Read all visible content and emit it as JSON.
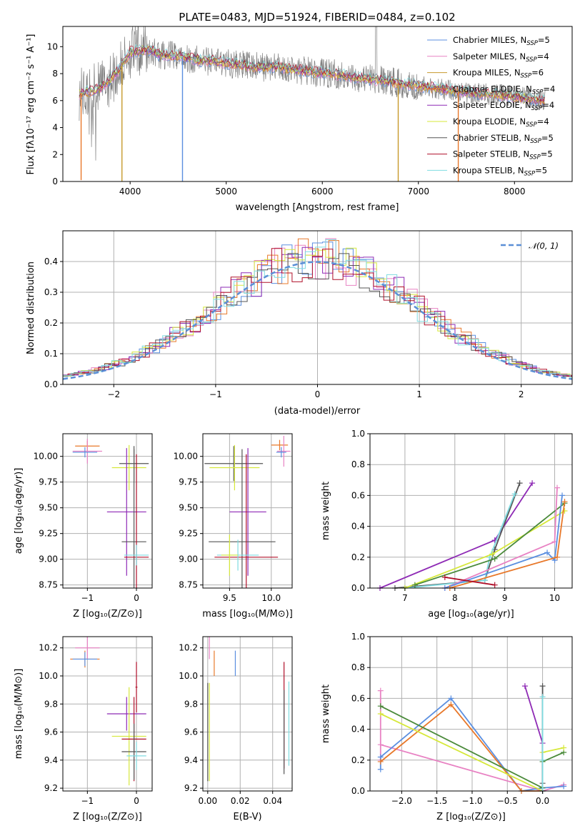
{
  "colors": {
    "Chabrier MILES": "#5b8fe0",
    "Salpeter MILES": "#e882c3",
    "Kroupa MILES": "#c79a2c",
    "Chabrier ELODIE": "#e8782a",
    "Salpeter ELODIE": "#8e2ab5",
    "Kroupa ELODIE": "#d6e83a",
    "Chabrier STELIB": "#555555",
    "Salpeter STELIB": "#b0102a",
    "Kroupa STELIB": "#7fdbe0",
    "data": "#808080",
    "normal": "#5b8fd6",
    "green": "#4a8a3a"
  },
  "chart_data": [
    {
      "type": "line",
      "title": "PLATE=0483, MJD=51924, FIBERID=0484, z=0.102",
      "xlabel": "wavelength [Angstrom, rest frame]",
      "ylabel": "Flux [fλ10⁻¹⁷ erg cm⁻² s⁻¹ A⁻¹]",
      "xlim": [
        3300,
        8600
      ],
      "ylim": [
        0,
        11.5
      ],
      "xticks": [
        "4000",
        "5000",
        "6000",
        "7000",
        "8000"
      ],
      "yticks": [
        "0",
        "2",
        "4",
        "6",
        "8",
        "10"
      ],
      "legend": "top-right",
      "series": [
        {
          "name": "Chabrier MILES, N",
          "sub": "SSP",
          "suffix": "=5"
        },
        {
          "name": "Salpeter MILES, N",
          "sub": "SSP",
          "suffix": "=4"
        },
        {
          "name": "Kroupa MILES, N",
          "sub": "SSP",
          "suffix": "=6"
        },
        {
          "name": "Chabrier ELODIE, N",
          "sub": "SSP",
          "suffix": "=4"
        },
        {
          "name": "Salpeter ELODIE, N",
          "sub": "SSP",
          "suffix": "=4"
        },
        {
          "name": "Kroupa ELODIE, N",
          "sub": "SSP",
          "suffix": "=4"
        },
        {
          "name": "Chabrier STELIB, N",
          "sub": "SSP",
          "suffix": "=5"
        },
        {
          "name": "Salpeter STELIB, N",
          "sub": "SSP",
          "suffix": "=5"
        },
        {
          "name": "Kroupa STELIB, N",
          "sub": "SSP",
          "suffix": "=5"
        }
      ],
      "continuum": {
        "x": [
          3470,
          3600,
          3700,
          3800,
          3900,
          4000,
          4100,
          4200,
          4300,
          4500,
          4700,
          4900,
          5100,
          5300,
          5500,
          5700,
          5900,
          6100,
          6300,
          6500,
          6700,
          6900,
          7100,
          7300,
          7500,
          7700,
          7900,
          8100,
          8300
        ],
        "y": [
          6.5,
          6.7,
          7.0,
          7.6,
          8.4,
          9.6,
          9.7,
          9.8,
          9.4,
          9.3,
          9.0,
          8.9,
          8.7,
          8.5,
          8.5,
          8.3,
          8.1,
          8.0,
          7.8,
          7.6,
          7.4,
          7.2,
          7.0,
          6.8,
          6.6,
          6.5,
          6.4,
          6.2,
          6.0
        ]
      },
      "dips": [
        {
          "x": 3490,
          "y": 0.1,
          "series": "Chabrier ELODIE"
        },
        {
          "x": 3915,
          "y": 0.0,
          "series": "Kroupa MILES"
        },
        {
          "x": 4545,
          "y": 0.0,
          "series": "Chabrier MILES"
        },
        {
          "x": 6790,
          "y": 0.0,
          "series": "Kroupa MILES"
        },
        {
          "x": 7415,
          "y": 0.0,
          "series": "Chabrier ELODIE"
        }
      ]
    },
    {
      "type": "histogram",
      "xlabel": "(data-model)/error",
      "ylabel": "Normed distribution",
      "xlim": [
        -2.5,
        2.5
      ],
      "ylim": [
        0,
        0.5
      ],
      "xticks": [
        "−2",
        "−1",
        "0",
        "1",
        "2"
      ],
      "yticks": [
        "0.0",
        "0.1",
        "0.2",
        "0.3",
        "0.4"
      ],
      "grid": true,
      "legend": {
        "label": "𝒩(0, 1)",
        "placement": "top-right"
      },
      "bin_width": 0.1
    },
    {
      "type": "errorbar",
      "xlabel": "Z [log₁₀(Z/Z⊙)]",
      "ylabel": "age [log₁₀(age/yr)]",
      "xlim": [
        -1.5,
        0.32
      ],
      "ylim": [
        8.72,
        10.22
      ],
      "xticks": [
        "−1",
        "0"
      ],
      "yticks": [
        "8.75",
        "9.00",
        "9.25",
        "9.50",
        "9.75",
        "10.00"
      ],
      "points": [
        {
          "series": "Chabrier ELODIE",
          "x": -1.0,
          "y": 10.1,
          "xerr": 0.25,
          "yerr": 0.05
        },
        {
          "series": "Salpeter MILES",
          "x": -1.0,
          "y": 10.05,
          "xerr": 0.3,
          "yerr": 0.12
        },
        {
          "series": "Chabrier MILES",
          "x": -1.05,
          "y": 10.04,
          "xerr": 0.25,
          "yerr": 0.05
        },
        {
          "series": "Kroupa ELODIE",
          "x": -0.15,
          "y": 9.89,
          "xerr": 0.35,
          "yerr": 0.22
        },
        {
          "series": "Chabrier STELIB",
          "x": -0.05,
          "y": 9.93,
          "xerr": 0.3,
          "yerr": 0.17
        },
        {
          "series": "Salpeter ELODIE",
          "x": -0.2,
          "y": 9.46,
          "xerr": 0.4,
          "yerr": 0.62
        },
        {
          "series": "Chabrier STELIB",
          "x": -0.05,
          "y": 9.17,
          "xerr": 0.25,
          "yerr": 0.9
        },
        {
          "series": "Salpeter STELIB",
          "x": 0.0,
          "y": 9.02,
          "xerr": 0.25,
          "yerr": 1.0
        },
        {
          "series": "Kroupa STELIB",
          "x": 0.0,
          "y": 9.04,
          "xerr": 0.25,
          "yerr": 0.1
        }
      ]
    },
    {
      "type": "errorbar",
      "xlabel": "mass [log₁₀(M/M⊙)]",
      "ylabel": "",
      "xlim": [
        9.18,
        10.25
      ],
      "ylim": [
        8.72,
        10.22
      ],
      "xticks": [
        "9.5",
        "10.0"
      ],
      "yticks": [
        "8.75",
        "9.00",
        "9.25",
        "9.50",
        "9.75",
        "10.00"
      ],
      "points": [
        {
          "series": "Chabrier ELODIE",
          "x": 10.1,
          "y": 10.11,
          "xerr": 0.1,
          "yerr": 0.05
        },
        {
          "series": "Salpeter MILES",
          "x": 10.15,
          "y": 10.05,
          "xerr": 0.08,
          "yerr": 0.15
        },
        {
          "series": "Chabrier MILES",
          "x": 10.12,
          "y": 10.04,
          "xerr": 0.06,
          "yerr": 0.05
        },
        {
          "series": "Chabrier STELIB",
          "x": 9.55,
          "y": 9.93,
          "xerr": 0.35,
          "yerr": 0.17
        },
        {
          "series": "Kroupa ELODIE",
          "x": 9.56,
          "y": 9.89,
          "xerr": 0.3,
          "yerr": 0.22
        },
        {
          "series": "Salpeter ELODIE",
          "x": 9.72,
          "y": 9.46,
          "xerr": 0.22,
          "yerr": 0.62
        },
        {
          "series": "Chabrier STELIB",
          "x": 9.65,
          "y": 9.17,
          "xerr": 0.4,
          "yerr": 0.9
        },
        {
          "series": "Salpeter STELIB",
          "x": 9.7,
          "y": 9.02,
          "xerr": 0.38,
          "yerr": 1.0
        },
        {
          "series": "Kroupa STELIB",
          "x": 9.6,
          "y": 9.04,
          "xerr": 0.25,
          "yerr": 0.15
        },
        {
          "series": "Kroupa ELODIE",
          "x": 9.5,
          "y": 9.04,
          "xerr": 0.1,
          "yerr": 0.2
        }
      ]
    },
    {
      "type": "line",
      "xlabel": "age [log₁₀(age/yr)]",
      "ylabel": "mass weight",
      "xlim": [
        6.3,
        10.35
      ],
      "ylim": [
        0,
        1.0
      ],
      "xticks": [
        "7",
        "8",
        "9",
        "10"
      ],
      "yticks": [
        "0.0",
        "0.2",
        "0.4",
        "0.6",
        "0.8",
        "1.0"
      ],
      "grid": true,
      "series": [
        {
          "name": "Salpeter ELODIE",
          "x": [
            6.5,
            8.8,
            9.55
          ],
          "y": [
            0.0,
            0.31,
            0.68
          ]
        },
        {
          "name": "Chabrier STELIB",
          "x": [
            6.8,
            8.6,
            8.8,
            9.3
          ],
          "y": [
            0.0,
            0.05,
            0.25,
            0.68
          ]
        },
        {
          "name": "Kroupa STELIB",
          "x": [
            7.0,
            8.6,
            8.7,
            9.2
          ],
          "y": [
            0.0,
            0.05,
            0.2,
            0.61
          ]
        },
        {
          "name": "Kroupa ELODIE",
          "x": [
            7.0,
            8.75,
            10.2
          ],
          "y": [
            0.0,
            0.22,
            0.5
          ]
        },
        {
          "name": "green",
          "x": [
            7.2,
            8.8,
            10.2
          ],
          "y": [
            0.02,
            0.19,
            0.55
          ]
        },
        {
          "name": "Salpeter MILES",
          "x": [
            7.8,
            10.0,
            10.05
          ],
          "y": [
            0.0,
            0.3,
            0.65
          ]
        },
        {
          "name": "Chabrier MILES",
          "x": [
            7.8,
            9.85,
            10.0,
            10.15
          ],
          "y": [
            0.0,
            0.23,
            0.18,
            0.6
          ]
        },
        {
          "name": "Chabrier ELODIE",
          "x": [
            7.9,
            10.05,
            10.2
          ],
          "y": [
            0.0,
            0.2,
            0.56
          ]
        },
        {
          "name": "Salpeter STELIB",
          "x": [
            7.8,
            8.8
          ],
          "y": [
            0.07,
            0.02
          ]
        }
      ]
    },
    {
      "type": "errorbar",
      "xlabel": "Z [log₁₀(Z/Z⊙)]",
      "ylabel": "mass [log₁₀(M/M⊙)]",
      "xlim": [
        -1.5,
        0.32
      ],
      "ylim": [
        9.18,
        10.28
      ],
      "xticks": [
        "−1",
        "0"
      ],
      "yticks": [
        "9.2",
        "9.4",
        "9.6",
        "9.8",
        "10.0",
        "10.2"
      ],
      "points": [
        {
          "series": "Salpeter MILES",
          "x": -1.0,
          "y": 10.2,
          "xerr": 0.25,
          "yerr": 0.08
        },
        {
          "series": "Chabrier ELODIE",
          "x": -1.05,
          "y": 10.12,
          "xerr": 0.3,
          "yerr": 0.06
        },
        {
          "series": "Chabrier MILES",
          "x": -1.05,
          "y": 10.12,
          "xerr": 0.25,
          "yerr": 0.05
        },
        {
          "series": "Salpeter STELIB",
          "x": 0.0,
          "y": 9.92,
          "xerr": 0.02,
          "yerr": 0.18
        },
        {
          "series": "Salpeter ELODIE",
          "x": -0.2,
          "y": 9.73,
          "xerr": 0.4,
          "yerr": 0.12
        },
        {
          "series": "Kroupa ELODIE",
          "x": -0.15,
          "y": 9.57,
          "xerr": 0.35,
          "yerr": 0.35
        },
        {
          "series": "Salpeter STELIB",
          "x": -0.05,
          "y": 9.55,
          "xerr": 0.25,
          "yerr": 0.3
        },
        {
          "series": "Chabrier STELIB",
          "x": -0.05,
          "y": 9.46,
          "xerr": 0.25,
          "yerr": 0.2
        },
        {
          "series": "Kroupa STELIB",
          "x": 0.0,
          "y": 9.43,
          "xerr": 0.2,
          "yerr": 0.1
        }
      ]
    },
    {
      "type": "errorbar",
      "xlabel": "E(B-V)",
      "ylabel": "",
      "xlim": [
        -0.003,
        0.052
      ],
      "ylim": [
        9.18,
        10.28
      ],
      "xticks": [
        "0.00",
        "0.02",
        "0.04"
      ],
      "yticks": [
        "9.2",
        "9.4",
        "9.6",
        "9.8",
        "10.0",
        "10.2"
      ],
      "points": [
        {
          "series": "Salpeter MILES",
          "x": 0.001,
          "y": 10.2,
          "yerr": 0.08
        },
        {
          "series": "Chabrier ELODIE",
          "x": 0.004,
          "y": 10.09,
          "yerr": 0.09
        },
        {
          "series": "Chabrier MILES",
          "x": 0.017,
          "y": 10.09,
          "yerr": 0.09
        },
        {
          "series": "Kroupa ELODIE",
          "x": 0.001,
          "y": 9.6,
          "yerr": 0.35
        },
        {
          "series": "Chabrier STELIB",
          "x": 0.0,
          "y": 9.6,
          "yerr": 0.35
        },
        {
          "series": "Salpeter STELIB",
          "x": 0.047,
          "y": 9.72,
          "yerr": 0.38
        },
        {
          "series": "Chabrier STELIB",
          "x": 0.047,
          "y": 9.6,
          "yerr": 0.3
        },
        {
          "series": "Kroupa STELIB",
          "x": 0.05,
          "y": 9.66,
          "yerr": 0.3
        }
      ]
    },
    {
      "type": "line",
      "xlabel": "Z [log₁₀(Z/Z⊙)]",
      "ylabel": "mass weight",
      "xlim": [
        -2.45,
        0.42
      ],
      "ylim": [
        0,
        1.0
      ],
      "xticks": [
        "−2.0",
        "−1.5",
        "−1.0",
        "−0.5",
        "0.0"
      ],
      "yticks": [
        "0.0",
        "0.2",
        "0.4",
        "0.6",
        "0.8",
        "1.0"
      ],
      "grid": true,
      "series": [
        {
          "name": "Salpeter MILES",
          "x": [
            -2.3,
            -2.3,
            -2.3,
            0.0,
            0.3
          ],
          "y": [
            0.2,
            0.65,
            0.3,
            0.0,
            0.04
          ]
        },
        {
          "name": "Chabrier MILES",
          "x": [
            -2.3,
            -2.3,
            -1.3,
            -0.3,
            0.0,
            0.3
          ],
          "y": [
            0.14,
            0.22,
            0.6,
            0.0,
            0.02,
            0.03
          ]
        },
        {
          "name": "Chabrier ELODIE",
          "x": [
            -2.3,
            -1.3,
            -0.3,
            0.0
          ],
          "y": [
            0.19,
            0.56,
            0.0,
            0.0
          ]
        },
        {
          "name": "green",
          "x": [
            -2.3,
            0.0,
            0.0,
            0.3
          ],
          "y": [
            0.55,
            0.02,
            0.19,
            0.25
          ]
        },
        {
          "name": "Kroupa ELODIE",
          "x": [
            -2.3,
            0.0,
            0.0,
            0.3
          ],
          "y": [
            0.5,
            0.0,
            0.25,
            0.28
          ]
        },
        {
          "name": "Salpeter ELODIE",
          "x": [
            -0.25,
            0.0,
            0.0
          ],
          "y": [
            0.68,
            0.31,
            0.0
          ]
        },
        {
          "name": "Chabrier STELIB",
          "x": [
            0.0,
            0.0,
            0.0
          ],
          "y": [
            0.68,
            0.05,
            0.0
          ]
        },
        {
          "name": "Kroupa STELIB",
          "x": [
            0.0,
            0.0,
            0.0
          ],
          "y": [
            0.61,
            0.2,
            0.0
          ]
        }
      ]
    }
  ]
}
